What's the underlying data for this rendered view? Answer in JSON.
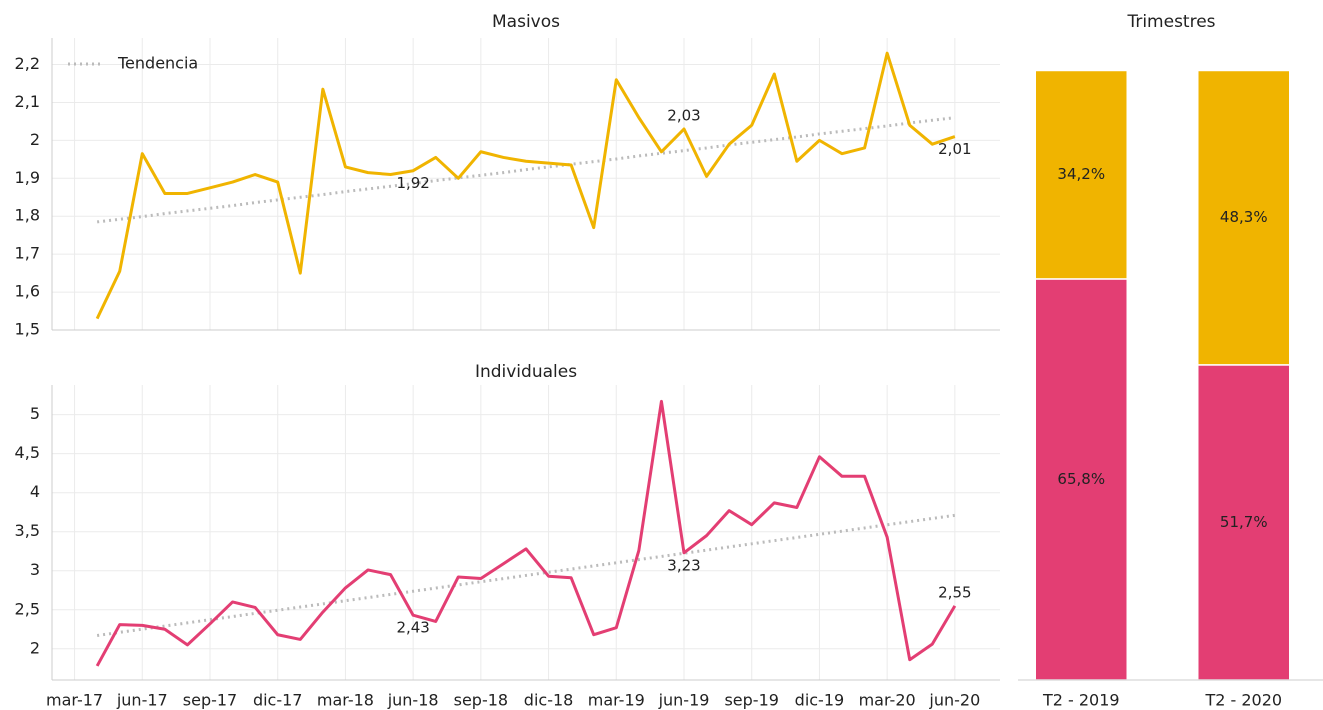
{
  "chart_data": [
    {
      "type": "line",
      "title": "Masivos",
      "x": [
        "2017-04",
        "2017-05",
        "2017-06",
        "2017-07",
        "2017-08",
        "2017-09",
        "2017-10",
        "2017-11",
        "2017-12",
        "2018-01",
        "2018-02",
        "2018-03",
        "2018-04",
        "2018-05",
        "2018-06",
        "2018-07",
        "2018-08",
        "2018-09",
        "2018-10",
        "2018-11",
        "2018-12",
        "2019-01",
        "2019-02",
        "2019-03",
        "2019-04",
        "2019-05",
        "2019-06",
        "2019-07",
        "2019-08",
        "2019-09",
        "2019-10",
        "2019-11",
        "2019-12",
        "2020-01",
        "2020-02",
        "2020-03",
        "2020-04",
        "2020-05",
        "2020-06"
      ],
      "series": [
        {
          "color": "#f0b400",
          "values": [
            1.53,
            1.655,
            1.965,
            1.86,
            1.86,
            1.875,
            1.89,
            1.91,
            1.89,
            1.65,
            2.135,
            1.93,
            1.915,
            1.91,
            1.92,
            1.955,
            1.9,
            1.97,
            1.955,
            1.945,
            1.94,
            1.935,
            1.77,
            2.16,
            2.06,
            1.97,
            2.03,
            1.905,
            1.99,
            2.04,
            2.175,
            1.945,
            2.0,
            1.965,
            1.98,
            2.23,
            2.04,
            1.99,
            2.01
          ],
          "value_labels": [
            null,
            null,
            null,
            null,
            null,
            null,
            null,
            null,
            null,
            null,
            null,
            null,
            null,
            null,
            "1,92",
            null,
            null,
            null,
            null,
            null,
            null,
            null,
            null,
            null,
            null,
            null,
            "2,03",
            null,
            null,
            null,
            null,
            null,
            null,
            null,
            null,
            null,
            null,
            null,
            "2,01"
          ]
        },
        {
          "name": "Tendencia",
          "color": "#bbbbbb",
          "dotted": true,
          "values": [
            1.785,
            1.792,
            1.799,
            1.807,
            1.814,
            1.821,
            1.828,
            1.836,
            1.843,
            1.85,
            1.857,
            1.865,
            1.872,
            1.879,
            1.886,
            1.894,
            1.901,
            1.908,
            1.915,
            1.923,
            1.93,
            1.937,
            1.944,
            1.951,
            1.959,
            1.966,
            1.973,
            1.98,
            1.988,
            1.995,
            2.002,
            2.009,
            2.017,
            2.024,
            2.031,
            2.038,
            2.046,
            2.053,
            2.06
          ]
        }
      ],
      "xlim": [
        "2017-02",
        "2020-08"
      ],
      "ylim": [
        1.5,
        2.27
      ],
      "yticks": [
        {
          "value": 1.5,
          "label": "1,5"
        },
        {
          "value": 1.6,
          "label": "1,6"
        },
        {
          "value": 1.7,
          "label": "1,7"
        },
        {
          "value": 1.8,
          "label": "1,8"
        },
        {
          "value": 1.9,
          "label": "1,9"
        },
        2,
        {
          "value": 2.1,
          "label": "2,1"
        },
        {
          "value": 2.2,
          "label": "2,2"
        }
      ],
      "grid": true,
      "legend": "upper left"
    },
    {
      "type": "line",
      "title": "Individuales",
      "x": [
        "2017-04",
        "2017-05",
        "2017-06",
        "2017-07",
        "2017-08",
        "2017-09",
        "2017-10",
        "2017-11",
        "2017-12",
        "2018-01",
        "2018-02",
        "2018-03",
        "2018-04",
        "2018-05",
        "2018-06",
        "2018-07",
        "2018-08",
        "2018-09",
        "2018-10",
        "2018-11",
        "2018-12",
        "2019-01",
        "2019-02",
        "2019-03",
        "2019-04",
        "2019-05",
        "2019-06",
        "2019-07",
        "2019-08",
        "2019-09",
        "2019-10",
        "2019-11",
        "2019-12",
        "2020-01",
        "2020-02",
        "2020-03",
        "2020-04",
        "2020-05",
        "2020-06"
      ],
      "series": [
        {
          "color": "#e33e73",
          "values": [
            1.78,
            2.31,
            2.3,
            2.25,
            2.05,
            2.32,
            2.6,
            2.53,
            2.18,
            2.12,
            2.47,
            2.78,
            3.01,
            2.95,
            2.43,
            2.35,
            2.92,
            2.9,
            3.09,
            3.28,
            2.93,
            2.91,
            2.18,
            2.27,
            3.26,
            5.17,
            3.23,
            3.45,
            3.77,
            3.59,
            3.87,
            3.81,
            4.46,
            4.21,
            4.21,
            3.43,
            1.86,
            2.06,
            2.55
          ],
          "value_labels": [
            null,
            null,
            null,
            null,
            null,
            null,
            null,
            null,
            null,
            null,
            null,
            null,
            null,
            null,
            "2,43",
            null,
            null,
            null,
            null,
            null,
            null,
            null,
            null,
            null,
            null,
            null,
            "3,23",
            null,
            null,
            null,
            null,
            null,
            null,
            null,
            null,
            null,
            null,
            null,
            "2,55"
          ]
        },
        {
          "color": "#bbbbbb",
          "dotted": true,
          "values": [
            2.17,
            2.211,
            2.251,
            2.292,
            2.332,
            2.373,
            2.413,
            2.454,
            2.494,
            2.535,
            2.575,
            2.616,
            2.656,
            2.697,
            2.737,
            2.778,
            2.818,
            2.859,
            2.899,
            2.94,
            2.981,
            3.021,
            3.062,
            3.102,
            3.143,
            3.183,
            3.224,
            3.264,
            3.305,
            3.345,
            3.386,
            3.426,
            3.467,
            3.507,
            3.548,
            3.589,
            3.629,
            3.67,
            3.71
          ]
        }
      ],
      "xlim": [
        "2017-02",
        "2020-08"
      ],
      "ylim": [
        1.6,
        5.38
      ],
      "xticks": [
        {
          "value": "2017-03",
          "label": "mar-17"
        },
        {
          "value": "2017-06",
          "label": "jun-17"
        },
        {
          "value": "2017-09",
          "label": "sep-17"
        },
        {
          "value": "2017-12",
          "label": "dic-17"
        },
        {
          "value": "2018-03",
          "label": "mar-18"
        },
        {
          "value": "2018-06",
          "label": "jun-18"
        },
        {
          "value": "2018-09",
          "label": "sep-18"
        },
        {
          "value": "2018-12",
          "label": "dic-18"
        },
        {
          "value": "2019-03",
          "label": "mar-19"
        },
        {
          "value": "2019-06",
          "label": "jun-19"
        },
        {
          "value": "2019-09",
          "label": "sep-19"
        },
        {
          "value": "2019-12",
          "label": "dic-19"
        },
        {
          "value": "2020-03",
          "label": "mar-20"
        },
        {
          "value": "2020-06",
          "label": "jun-20"
        }
      ],
      "yticks": [
        2,
        {
          "value": 2.5,
          "label": "2,5"
        },
        3,
        {
          "value": 3.5,
          "label": "3,5"
        },
        4,
        {
          "value": 4.5,
          "label": "4,5"
        },
        5
      ],
      "grid": true
    },
    {
      "type": "stacked_bar",
      "title": "Trimestres",
      "categories": [
        "T2 - 2019",
        "T2 - 2020"
      ],
      "series": [
        {
          "color": "#e33e73",
          "values": [
            65.8,
            51.7
          ],
          "value_labels": [
            "65,8%",
            "51,7%"
          ]
        },
        {
          "color": "#f0b400",
          "values": [
            34.2,
            48.3
          ],
          "value_labels": [
            "34,2%",
            "48,3%"
          ]
        }
      ],
      "ylim": [
        0,
        105
      ]
    }
  ]
}
